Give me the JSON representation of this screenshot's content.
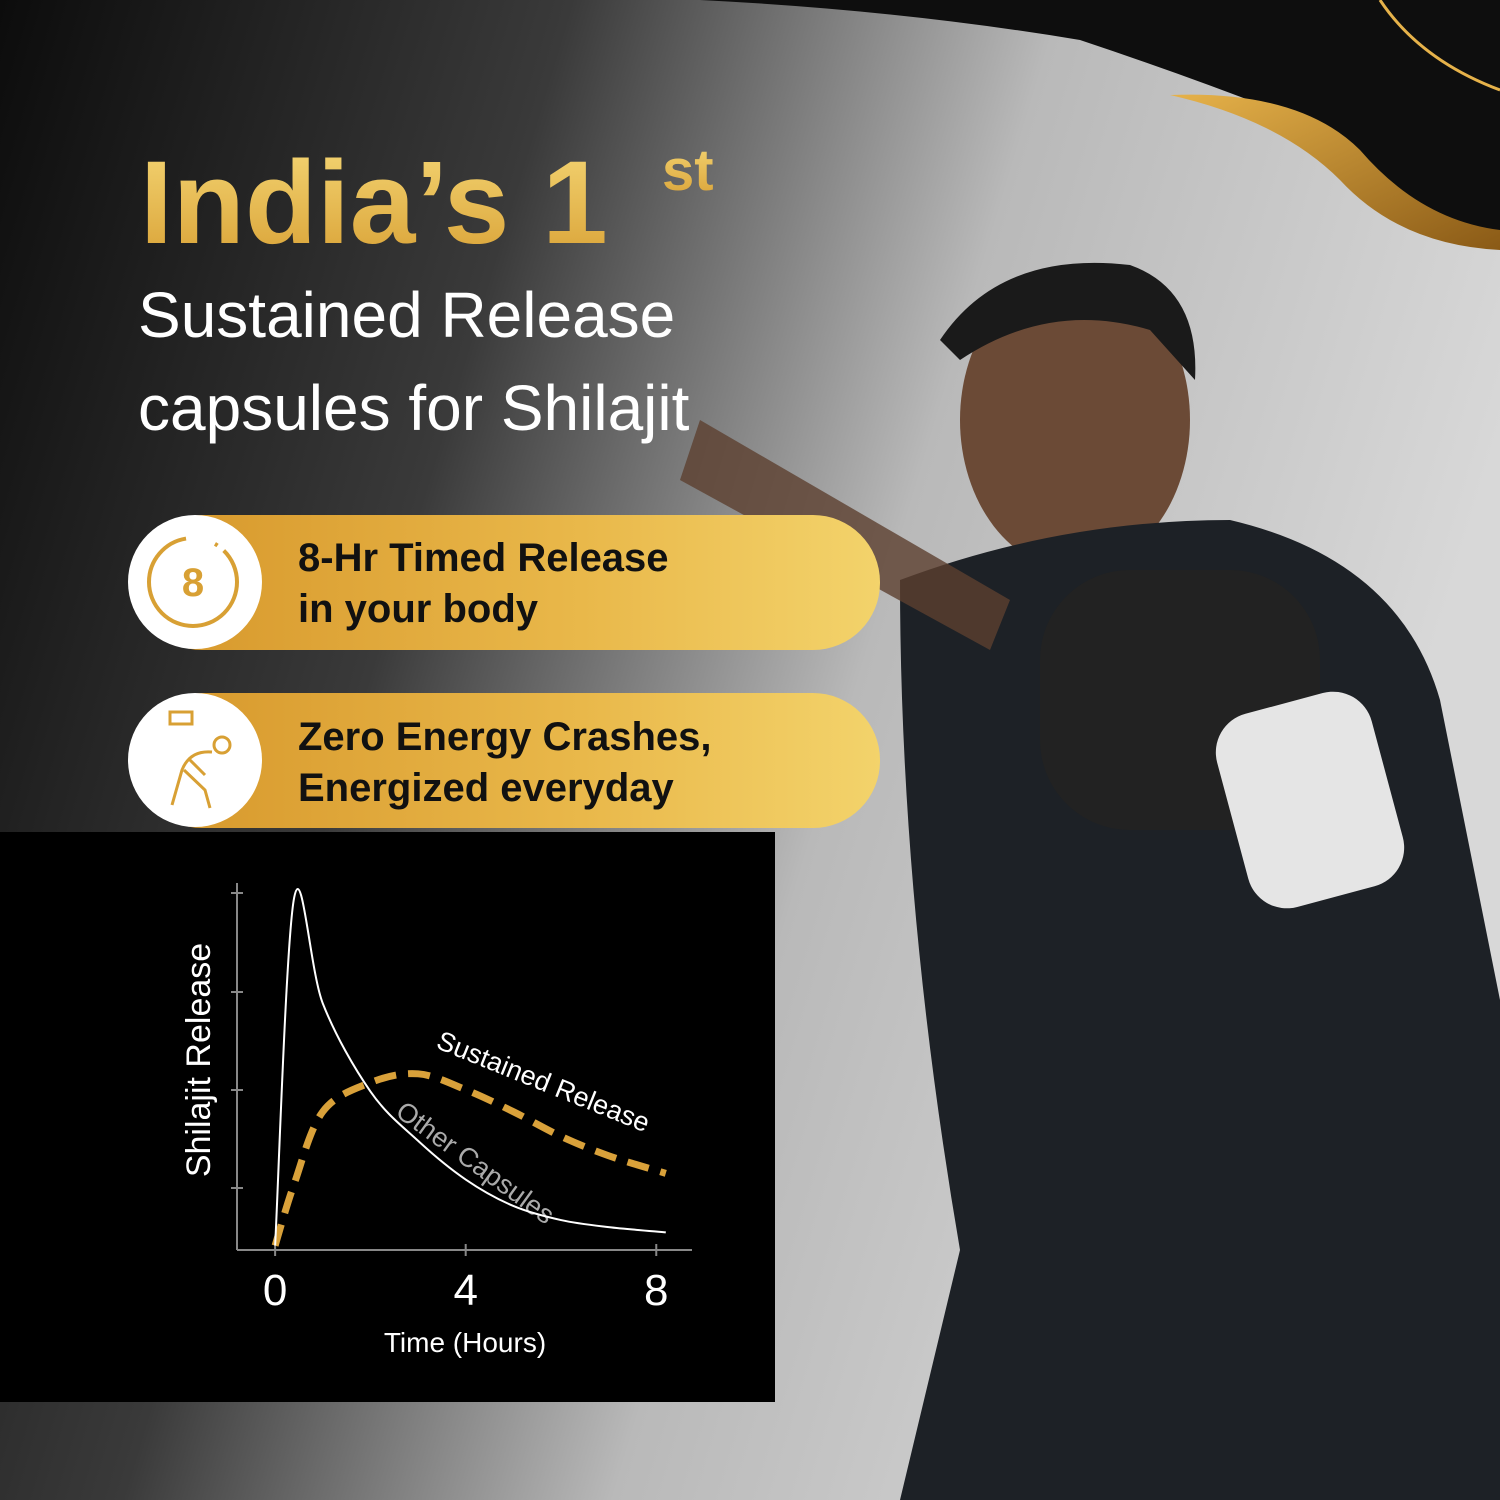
{
  "header": {
    "title": "India’s 1",
    "title_sup": "st",
    "subtitle_lines": [
      "Sustained Release",
      "capsules for Shilajit"
    ]
  },
  "features": [
    {
      "icon_text": "8",
      "lines": [
        "8-Hr Timed Release",
        "in your body"
      ]
    },
    {
      "lines": [
        "Zero Energy Crashes,",
        "Energized everyday"
      ]
    }
  ],
  "chart_data": {
    "type": "line",
    "y_label": "Shilajit Release",
    "x_label": "Time (Hours)",
    "x": [
      0,
      0.4,
      1,
      2,
      3,
      4,
      5,
      6,
      7,
      8.2
    ],
    "xlim": [
      -0.8,
      8.75
    ],
    "xticks": [
      0,
      4,
      8
    ],
    "ylim": [
      0,
      4.2
    ],
    "series": [
      {
        "name": "Sustained Release",
        "color": "#d9a13a",
        "dashed": true,
        "values": [
          0.05,
          0.75,
          1.57,
          1.9,
          2.0,
          1.82,
          1.57,
          1.29,
          1.07,
          0.87
        ]
      },
      {
        "name": "Other Capsules",
        "color": "#ffffff",
        "dashed": false,
        "values": [
          0.05,
          4.0,
          2.8,
          1.8,
          1.24,
          0.8,
          0.5,
          0.34,
          0.26,
          0.2
        ]
      }
    ]
  }
}
